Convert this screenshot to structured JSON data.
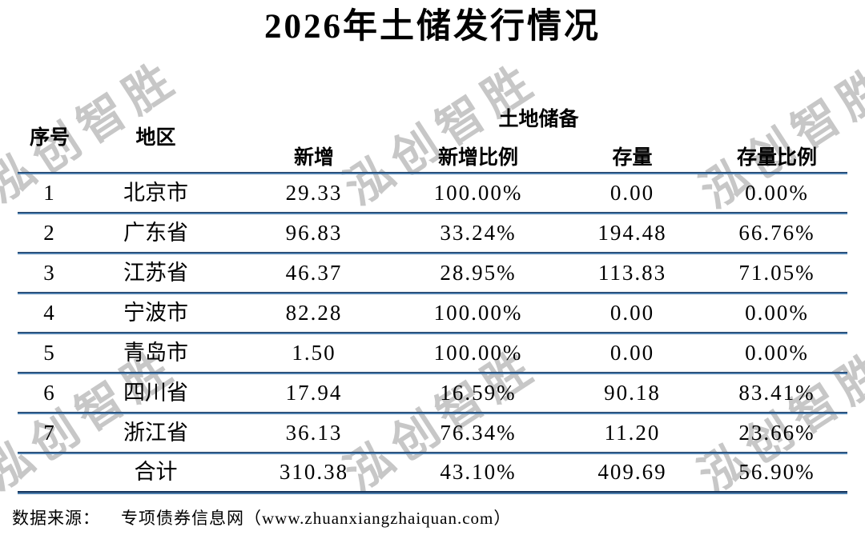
{
  "title": "2026年土储发行情况",
  "watermark": {
    "text": "泓创智胜"
  },
  "table": {
    "headers": {
      "no": "序号",
      "region": "地区",
      "group": "土地储备",
      "new": "新增",
      "new_ratio": "新增比例",
      "stock": "存量",
      "stock_ratio": "存量比例"
    },
    "rows": [
      {
        "no": "1",
        "region": "北京市",
        "new": "29.33",
        "new_ratio": "100.00%",
        "stock": "0.00",
        "stock_ratio": "0.00%"
      },
      {
        "no": "2",
        "region": "广东省",
        "new": "96.83",
        "new_ratio": "33.24%",
        "stock": "194.48",
        "stock_ratio": "66.76%"
      },
      {
        "no": "3",
        "region": "江苏省",
        "new": "46.37",
        "new_ratio": "28.95%",
        "stock": "113.83",
        "stock_ratio": "71.05%"
      },
      {
        "no": "4",
        "region": "宁波市",
        "new": "82.28",
        "new_ratio": "100.00%",
        "stock": "0.00",
        "stock_ratio": "0.00%"
      },
      {
        "no": "5",
        "region": "青岛市",
        "new": "1.50",
        "new_ratio": "100.00%",
        "stock": "0.00",
        "stock_ratio": "0.00%"
      },
      {
        "no": "6",
        "region": "四川省",
        "new": "17.94",
        "new_ratio": "16.59%",
        "stock": "90.18",
        "stock_ratio": "83.41%"
      },
      {
        "no": "7",
        "region": "浙江省",
        "new": "36.13",
        "new_ratio": "76.34%",
        "stock": "11.20",
        "stock_ratio": "23.66%"
      }
    ],
    "total": {
      "label": "合计",
      "new": "310.38",
      "new_ratio": "43.10%",
      "stock": "409.69",
      "stock_ratio": "56.90%"
    }
  },
  "footer": {
    "source_label": "数据来源：",
    "source_text": "专项债券信息网（www.zhuanxiangzhaiquan.com）"
  },
  "colors": {
    "divider_dark": "#17365D",
    "divider_light": "#4E7FAE",
    "watermark": "#C7C7C7",
    "text": "#000000"
  }
}
